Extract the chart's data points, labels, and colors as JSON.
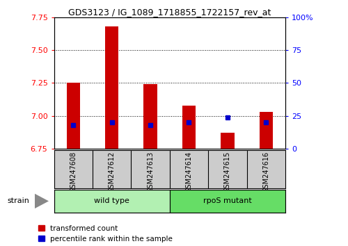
{
  "title": "GDS3123 / IG_1089_1718855_1722157_rev_at",
  "samples": [
    "GSM247608",
    "GSM247612",
    "GSM247613",
    "GSM247614",
    "GSM247615",
    "GSM247616"
  ],
  "transformed_counts": [
    7.25,
    7.68,
    7.24,
    7.08,
    6.87,
    7.03
  ],
  "percentile_ranks": [
    18,
    20,
    18,
    20,
    24,
    20
  ],
  "ylim_left": [
    6.75,
    7.75
  ],
  "ylim_right": [
    0,
    100
  ],
  "yticks_left": [
    6.75,
    7.0,
    7.25,
    7.5,
    7.75
  ],
  "yticks_right": [
    0,
    25,
    50,
    75,
    100
  ],
  "groups": [
    {
      "label": "wild type",
      "indices": [
        0,
        1,
        2
      ],
      "color": "#b2f0b2"
    },
    {
      "label": "rpoS mutant",
      "indices": [
        3,
        4,
        5
      ],
      "color": "#66dd66"
    }
  ],
  "bar_color": "#cc0000",
  "marker_color": "#0000cc",
  "bar_width": 0.35,
  "grid_color": "#000000",
  "plot_bg_color": "#ffffff",
  "sample_bg_color": "#cccccc",
  "group_label": "strain",
  "legend_items": [
    {
      "label": "transformed count",
      "color": "#cc0000"
    },
    {
      "label": "percentile rank within the sample",
      "color": "#0000cc"
    }
  ]
}
